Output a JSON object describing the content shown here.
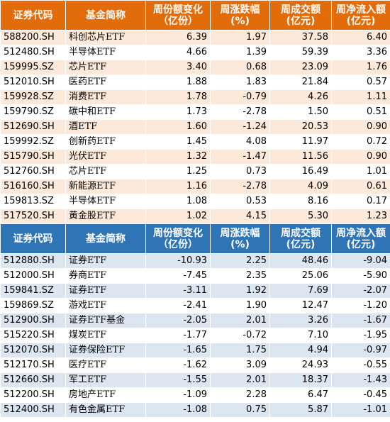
{
  "headers": [
    "证券代码",
    "基金简称",
    "周份额变化\n（亿份）",
    "周涨跌幅\n(%)",
    "周成交额\n(亿元)",
    "周净流入额\n(亿元)"
  ],
  "headers_top": [
    {
      "line1": "证券代码",
      "line2": ""
    },
    {
      "line1": "基金简称",
      "line2": ""
    },
    {
      "line1": "周份额变化",
      "line2": "（亿份）"
    },
    {
      "line1": "周涨跌幅",
      "line2": "(%)"
    },
    {
      "line1": "周成交额",
      "line2": "(亿元)"
    },
    {
      "line1": "周净流入额",
      "line2": "(亿元)"
    }
  ],
  "top_rows": [
    [
      "588200.SH",
      "科创芯片ETF",
      "6.39",
      "1.97",
      "37.58",
      "6.40"
    ],
    [
      "512480.SH",
      "半导体ETF",
      "4.66",
      "1.39",
      "59.39",
      "3.36"
    ],
    [
      "159995.SZ",
      "芯片ETF",
      "3.40",
      "0.68",
      "23.09",
      "1.76"
    ],
    [
      "512010.SH",
      "医药ETF",
      "1.88",
      "1.83",
      "21.84",
      "0.57"
    ],
    [
      "159928.SZ",
      "消费ETF",
      "1.78",
      "-0.79",
      "4.26",
      "1.11"
    ],
    [
      "159790.SZ",
      "碳中和ETF",
      "1.73",
      "-2.78",
      "1.50",
      "0.51"
    ],
    [
      "512690.SH",
      "酒ETF",
      "1.60",
      "-1.24",
      "20.53",
      "0.90"
    ],
    [
      "159992.SZ",
      "创新药ETF",
      "1.45",
      "4.08",
      "11.97",
      "0.72"
    ],
    [
      "515790.SH",
      "光伏ETF",
      "1.32",
      "-1.47",
      "11.56",
      "0.90"
    ],
    [
      "512760.SH",
      "芯片ETF",
      "1.25",
      "0.73",
      "16.49",
      "1.01"
    ],
    [
      "516160.SH",
      "新能源ETF",
      "1.16",
      "-2.78",
      "4.09",
      "0.61"
    ],
    [
      "159813.SZ",
      "半导体ETF",
      "1.08",
      "0.53",
      "8.16",
      "0.17"
    ],
    [
      "517520.SH",
      "黄金股ETF",
      "1.02",
      "4.15",
      "5.30",
      "1.23"
    ]
  ],
  "bottom_rows": [
    [
      "512880.SH",
      "证券ETF",
      "-10.93",
      "2.25",
      "48.46",
      "-9.04"
    ],
    [
      "512000.SH",
      "券商ETF",
      "-7.45",
      "2.35",
      "25.06",
      "-5.90"
    ],
    [
      "159841.SZ",
      "证券ETF",
      "-3.11",
      "1.92",
      "7.69",
      "-2.07"
    ],
    [
      "159869.SZ",
      "游戏ETF",
      "-2.41",
      "1.90",
      "12.47",
      "-1.20"
    ],
    [
      "512900.SH",
      "证券ETF基金",
      "-2.05",
      "2.01",
      "3.26",
      "-1.67"
    ],
    [
      "515220.SH",
      "煤炭ETF",
      "-1.77",
      "-0.72",
      "7.10",
      "-1.95"
    ],
    [
      "512070.SH",
      "证券保险ETF",
      "-1.65",
      "1.75",
      "4.94",
      "-0.97"
    ],
    [
      "512170.SH",
      "医疗ETF",
      "-1.62",
      "3.09",
      "24.93",
      "-0.55"
    ],
    [
      "512660.SH",
      "军工ETF",
      "-1.55",
      "2.01",
      "18.37",
      "-1.43"
    ],
    [
      "512200.SH",
      "房地产ETF",
      "-1.09",
      "2.28",
      "6.47",
      "-0.45"
    ],
    [
      "512400.SH",
      "有色金属ETF",
      "-1.08",
      "0.75",
      "5.87",
      "-1.01"
    ]
  ],
  "colors": {
    "top_header_bg": "#e26b0a",
    "top_stripe": "#fde9d9",
    "bottom_header_bg": "#2f75b5",
    "bottom_stripe": "#dce6f1"
  }
}
